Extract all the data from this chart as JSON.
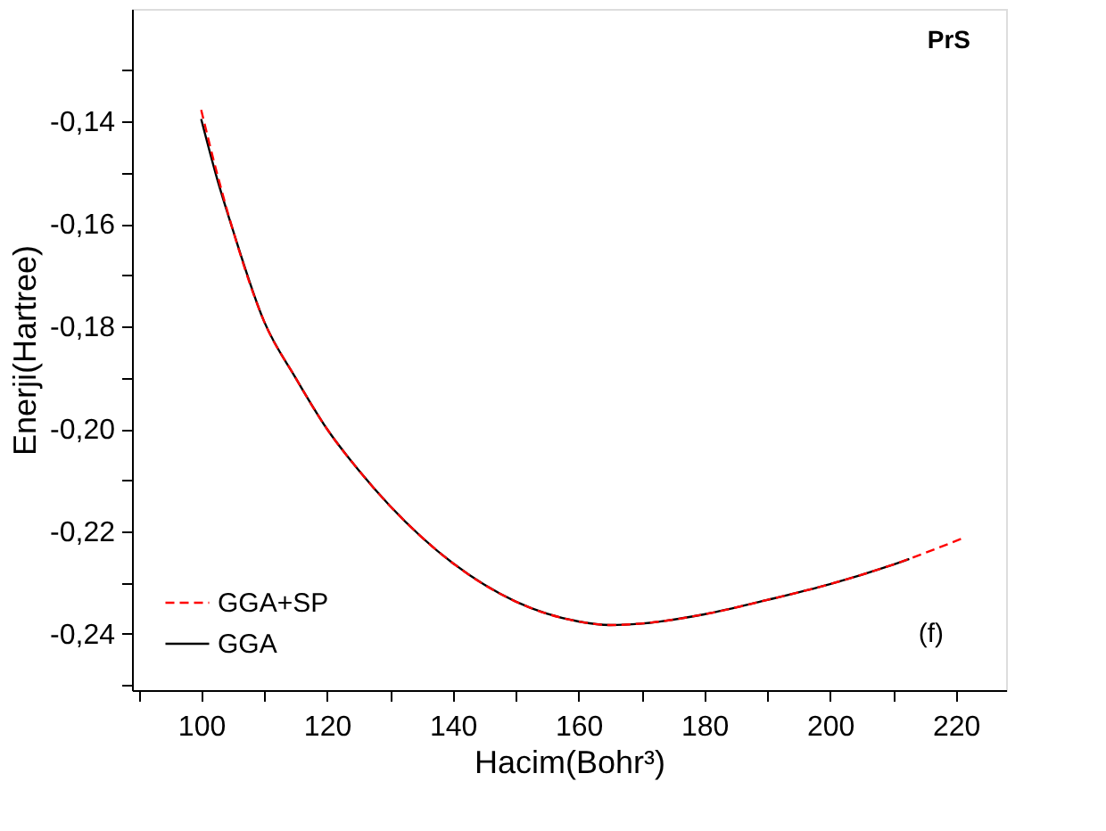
{
  "chart_data": {
    "type": "line",
    "xlabel": "Hacim(Bohr³)",
    "ylabel": "Enerji(Hartree)",
    "annotations": [
      "PrS",
      "(f)"
    ],
    "xlim": [
      89,
      228
    ],
    "ylim": [
      -0.251,
      -0.118
    ],
    "xticks": [
      {
        "value": 90,
        "label": null
      },
      100,
      {
        "value": 110,
        "label": null
      },
      120,
      {
        "value": 130,
        "label": null
      },
      140,
      {
        "value": 150,
        "label": null
      },
      160,
      {
        "value": 170,
        "label": null
      },
      180,
      {
        "value": 190,
        "label": null
      },
      200,
      {
        "value": 210,
        "label": null
      },
      220
    ],
    "yticks": [
      {
        "value": -0.25,
        "label": null
      },
      {
        "value": -0.24,
        "label": "-0,24"
      },
      {
        "value": -0.23,
        "label": null
      },
      {
        "value": -0.22,
        "label": "-0,22"
      },
      {
        "value": -0.21,
        "label": null
      },
      {
        "value": -0.2,
        "label": "-0,20"
      },
      {
        "value": -0.19,
        "label": null
      },
      {
        "value": -0.18,
        "label": "-0,18"
      },
      {
        "value": -0.17,
        "label": null
      },
      {
        "value": -0.16,
        "label": "-0,16"
      },
      {
        "value": -0.15,
        "label": null
      },
      {
        "value": -0.14,
        "label": "-0,14"
      },
      {
        "value": -0.13,
        "label": null
      }
    ],
    "grid": false,
    "legend": "bottom left",
    "series": [
      {
        "name": "GGA+SP",
        "color": "#ff0000",
        "line_style": "dashed",
        "x": [
          100,
          102.5,
          105,
          110,
          115,
          120,
          125,
          130,
          140,
          150,
          160,
          165,
          170,
          180,
          190,
          200,
          210,
          221
        ],
        "values": [
          -0.1377,
          -0.15,
          -0.161,
          -0.179,
          -0.19,
          -0.2,
          -0.208,
          -0.215,
          -0.2262,
          -0.2337,
          -0.2376,
          -0.2383,
          -0.238,
          -0.2362,
          -0.2334,
          -0.2303,
          -0.2265,
          -0.2214
        ]
      },
      {
        "name": "GGA",
        "color": "#000000",
        "line_style": "solid",
        "x": [
          100,
          102.5,
          105,
          110,
          115,
          120,
          125,
          130,
          140,
          150,
          160,
          165,
          170,
          180,
          190,
          200,
          210,
          212.6
        ],
        "values": [
          -0.1395,
          -0.151,
          -0.161,
          -0.179,
          -0.19,
          -0.2,
          -0.208,
          -0.215,
          -0.2262,
          -0.2337,
          -0.2376,
          -0.2383,
          -0.238,
          -0.2362,
          -0.2334,
          -0.2303,
          -0.2265,
          -0.2254
        ]
      }
    ]
  }
}
